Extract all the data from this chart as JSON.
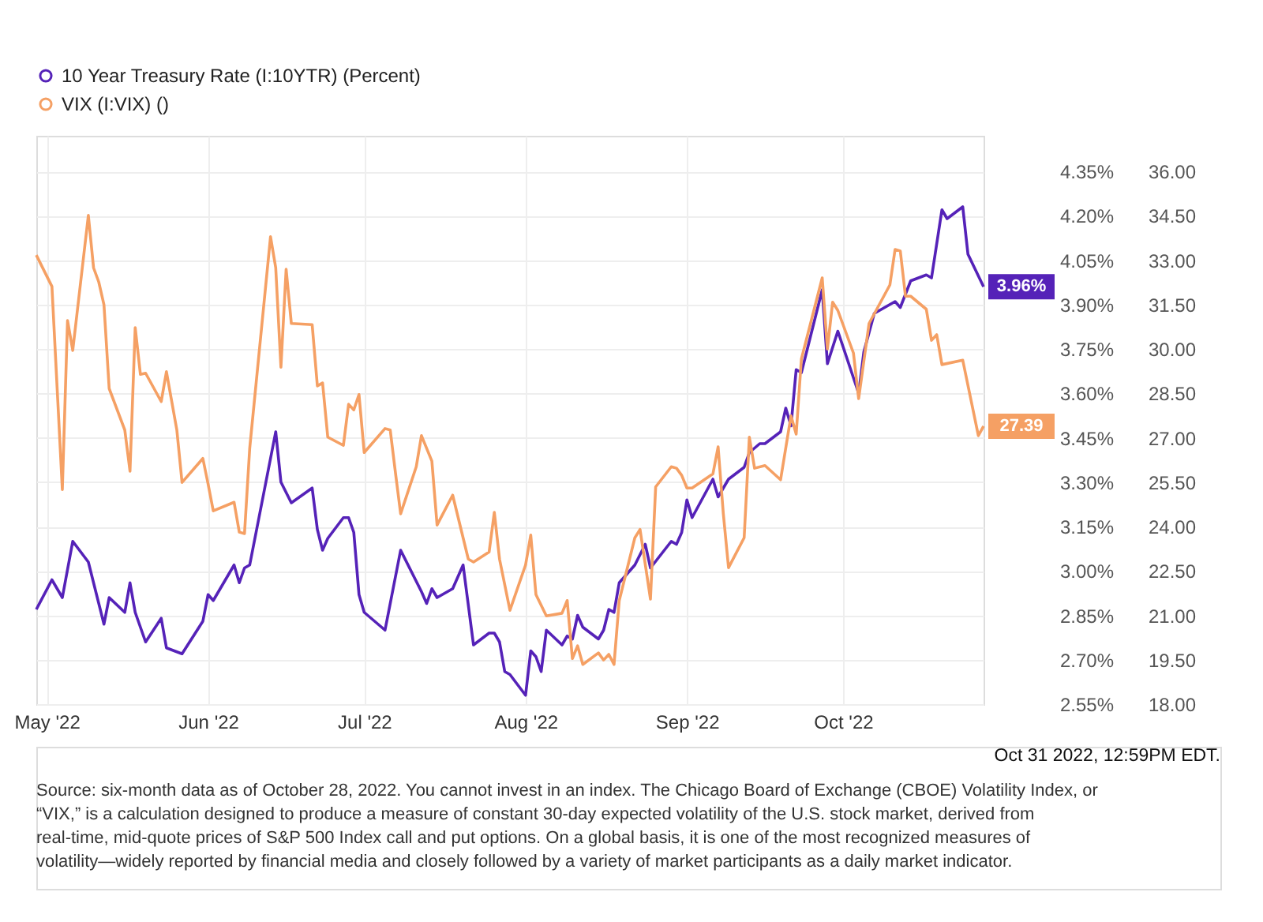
{
  "chart_data": {
    "type": "line",
    "xlim": [
      "2022-04-29",
      "2022-10-28"
    ],
    "xticks": [
      {
        "value": "2022-05-01",
        "label": "May '22"
      },
      {
        "value": "2022-06-01",
        "label": "Jun '22"
      },
      {
        "value": "2022-07-01",
        "label": "Jul '22"
      },
      {
        "value": "2022-08-01",
        "label": "Aug '22"
      },
      {
        "value": "2022-09-01",
        "label": "Sep '22"
      },
      {
        "value": "2022-10-01",
        "label": "Oct '22"
      }
    ],
    "ylim": [
      2.55,
      4.47
    ],
    "yticks": [
      {
        "value": 2.55,
        "label": "2.55%"
      },
      {
        "value": 2.7,
        "label": "2.70%"
      },
      {
        "value": 2.85,
        "label": "2.85%"
      },
      {
        "value": 3.0,
        "label": "3.00%"
      },
      {
        "value": 3.15,
        "label": "3.15%"
      },
      {
        "value": 3.3,
        "label": "3.30%"
      },
      {
        "value": 3.45,
        "label": "3.45%"
      },
      {
        "value": 3.6,
        "label": "3.60%"
      },
      {
        "value": 3.75,
        "label": "3.75%"
      },
      {
        "value": 3.9,
        "label": "3.90%"
      },
      {
        "value": 4.05,
        "label": "4.05%"
      },
      {
        "value": 4.2,
        "label": "4.20%"
      },
      {
        "value": 4.35,
        "label": "4.35%"
      }
    ],
    "y2lim": [
      18,
      37.2
    ],
    "y2ticks": [
      {
        "value": 18,
        "label": "18.00"
      },
      {
        "value": 19.5,
        "label": "19.50"
      },
      {
        "value": 21,
        "label": "21.00"
      },
      {
        "value": 22.5,
        "label": "22.50"
      },
      {
        "value": 24,
        "label": "24.00"
      },
      {
        "value": 25.5,
        "label": "25.50"
      },
      {
        "value": 27,
        "label": "27.00"
      },
      {
        "value": 28.5,
        "label": "28.50"
      },
      {
        "value": 30,
        "label": "30.00"
      },
      {
        "value": 31.5,
        "label": "31.50"
      },
      {
        "value": 33,
        "label": "33.00"
      },
      {
        "value": 34.5,
        "label": "34.50"
      },
      {
        "value": 36,
        "label": "36.00"
      }
    ],
    "grid": true,
    "legend": "top left",
    "series": [
      {
        "name": "10 Year Treasury Rate (I:10YTR) (Percent)",
        "color": "#5522b8",
        "x": [
          "2022-04-29",
          "2022-05-02",
          "2022-05-04",
          "2022-05-06",
          "2022-05-09",
          "2022-05-12",
          "2022-05-13",
          "2022-05-16",
          "2022-05-17",
          "2022-05-18",
          "2022-05-20",
          "2022-05-23",
          "2022-05-24",
          "2022-05-27",
          "2022-05-31",
          "2022-06-01",
          "2022-06-02",
          "2022-06-06",
          "2022-06-07",
          "2022-06-08",
          "2022-06-09",
          "2022-06-14",
          "2022-06-15",
          "2022-06-17",
          "2022-06-21",
          "2022-06-22",
          "2022-06-23",
          "2022-06-24",
          "2022-06-27",
          "2022-06-28",
          "2022-06-29",
          "2022-06-30",
          "2022-07-01",
          "2022-07-05",
          "2022-07-08",
          "2022-07-12",
          "2022-07-13",
          "2022-07-14",
          "2022-07-15",
          "2022-07-18",
          "2022-07-20",
          "2022-07-22",
          "2022-07-25",
          "2022-07-26",
          "2022-07-27",
          "2022-07-28",
          "2022-07-29",
          "2022-08-01",
          "2022-08-02",
          "2022-08-03",
          "2022-08-04",
          "2022-08-05",
          "2022-08-08",
          "2022-08-09",
          "2022-08-10",
          "2022-08-11",
          "2022-08-12",
          "2022-08-15",
          "2022-08-16",
          "2022-08-17",
          "2022-08-18",
          "2022-08-19",
          "2022-08-22",
          "2022-08-24",
          "2022-08-25",
          "2022-08-29",
          "2022-08-30",
          "2022-08-31",
          "2022-09-01",
          "2022-09-02",
          "2022-09-06",
          "2022-09-07",
          "2022-09-09",
          "2022-09-12",
          "2022-09-13",
          "2022-09-15",
          "2022-09-16",
          "2022-09-19",
          "2022-09-20",
          "2022-09-21",
          "2022-09-22",
          "2022-09-23",
          "2022-09-27",
          "2022-09-28",
          "2022-09-30",
          "2022-10-04",
          "2022-10-05",
          "2022-10-07",
          "2022-10-11",
          "2022-10-12",
          "2022-10-14",
          "2022-10-17",
          "2022-10-18",
          "2022-10-20",
          "2022-10-21",
          "2022-10-24",
          "2022-10-25",
          "2022-10-28"
        ],
        "values": [
          2.87,
          2.97,
          2.91,
          3.1,
          3.03,
          2.82,
          2.91,
          2.86,
          2.96,
          2.86,
          2.76,
          2.84,
          2.74,
          2.72,
          2.83,
          2.92,
          2.9,
          3.02,
          2.96,
          3.01,
          3.02,
          3.47,
          3.3,
          3.23,
          3.28,
          3.14,
          3.07,
          3.11,
          3.18,
          3.18,
          3.13,
          2.92,
          2.86,
          2.8,
          3.07,
          2.93,
          2.89,
          2.94,
          2.91,
          2.94,
          3.02,
          2.75,
          2.79,
          2.79,
          2.76,
          2.66,
          2.65,
          2.58,
          2.73,
          2.71,
          2.66,
          2.8,
          2.75,
          2.78,
          2.77,
          2.85,
          2.81,
          2.77,
          2.8,
          2.87,
          2.86,
          2.96,
          3.02,
          3.09,
          3.01,
          3.1,
          3.09,
          3.13,
          3.24,
          3.18,
          3.31,
          3.25,
          3.31,
          3.35,
          3.4,
          3.43,
          3.43,
          3.47,
          3.55,
          3.49,
          3.68,
          3.67,
          3.95,
          3.7,
          3.81,
          3.6,
          3.74,
          3.87,
          3.91,
          3.89,
          3.98,
          4.0,
          3.99,
          4.22,
          4.19,
          4.23,
          4.07,
          3.96
        ],
        "value_labels": [
          null,
          null,
          null,
          null,
          null,
          null,
          null,
          null,
          null,
          null,
          null,
          null,
          null,
          null,
          null,
          null,
          null,
          null,
          null,
          null,
          null,
          null,
          null,
          null,
          null,
          null,
          null,
          null,
          null,
          null,
          null,
          null,
          null,
          null,
          null,
          null,
          null,
          null,
          null,
          null,
          null,
          null,
          null,
          null,
          null,
          null,
          null,
          null,
          null,
          null,
          null,
          null,
          null,
          null,
          null,
          null,
          null,
          null,
          null,
          null,
          null,
          null,
          null,
          null,
          null,
          null,
          null,
          null,
          null,
          null,
          null,
          null,
          null,
          null,
          null,
          null,
          null,
          null,
          null,
          null,
          null,
          null,
          null,
          null,
          null,
          null,
          null,
          null,
          null,
          null,
          null,
          null,
          null,
          null,
          null,
          null,
          null,
          "3.96%"
        ]
      },
      {
        "name": "VIX (I:VIX) ()",
        "color": "#f5a064",
        "axis": "y2",
        "x": [
          "2022-04-29",
          "2022-05-02",
          "2022-05-04",
          "2022-05-05",
          "2022-05-06",
          "2022-05-09",
          "2022-05-10",
          "2022-05-11",
          "2022-05-12",
          "2022-05-13",
          "2022-05-16",
          "2022-05-17",
          "2022-05-18",
          "2022-05-19",
          "2022-05-20",
          "2022-05-23",
          "2022-05-24",
          "2022-05-26",
          "2022-05-27",
          "2022-05-31",
          "2022-06-01",
          "2022-06-02",
          "2022-06-06",
          "2022-06-07",
          "2022-06-08",
          "2022-06-09",
          "2022-06-13",
          "2022-06-14",
          "2022-06-15",
          "2022-06-16",
          "2022-06-17",
          "2022-06-21",
          "2022-06-22",
          "2022-06-23",
          "2022-06-24",
          "2022-06-27",
          "2022-06-28",
          "2022-06-29",
          "2022-06-30",
          "2022-07-01",
          "2022-07-05",
          "2022-07-06",
          "2022-07-07",
          "2022-07-08",
          "2022-07-11",
          "2022-07-12",
          "2022-07-14",
          "2022-07-15",
          "2022-07-18",
          "2022-07-21",
          "2022-07-22",
          "2022-07-25",
          "2022-07-26",
          "2022-07-27",
          "2022-07-29",
          "2022-08-01",
          "2022-08-02",
          "2022-08-03",
          "2022-08-05",
          "2022-08-08",
          "2022-08-09",
          "2022-08-10",
          "2022-08-11",
          "2022-08-12",
          "2022-08-15",
          "2022-08-16",
          "2022-08-17",
          "2022-08-18",
          "2022-08-19",
          "2022-08-22",
          "2022-08-23",
          "2022-08-25",
          "2022-08-26",
          "2022-08-29",
          "2022-08-30",
          "2022-08-31",
          "2022-09-01",
          "2022-09-02",
          "2022-09-06",
          "2022-09-07",
          "2022-09-08",
          "2022-09-09",
          "2022-09-12",
          "2022-09-13",
          "2022-09-14",
          "2022-09-16",
          "2022-09-19",
          "2022-09-21",
          "2022-09-22",
          "2022-09-23",
          "2022-09-27",
          "2022-09-28",
          "2022-09-29",
          "2022-09-30",
          "2022-10-03",
          "2022-10-04",
          "2022-10-06",
          "2022-10-10",
          "2022-10-11",
          "2022-10-12",
          "2022-10-13",
          "2022-10-14",
          "2022-10-17",
          "2022-10-18",
          "2022-10-19",
          "2022-10-20",
          "2022-10-24",
          "2022-10-27",
          "2022-10-28"
        ],
        "values": [
          33.17,
          32.11,
          25.25,
          30.96,
          29.95,
          34.51,
          32.74,
          32.26,
          31.49,
          28.66,
          27.26,
          25.87,
          30.72,
          29.14,
          29.18,
          28.22,
          29.23,
          27.26,
          25.49,
          26.3,
          25.44,
          24.53,
          24.82,
          23.81,
          23.76,
          26.64,
          33.79,
          32.74,
          29.38,
          32.69,
          30.86,
          30.82,
          28.75,
          28.85,
          27.02,
          26.74,
          28.13,
          27.94,
          28.46,
          26.5,
          27.31,
          27.26,
          25.82,
          24.43,
          26.02,
          27.07,
          26.21,
          24.05,
          25.06,
          22.9,
          22.8,
          23.14,
          24.48,
          22.9,
          21.17,
          22.7,
          23.71,
          21.7,
          20.98,
          21.07,
          21.5,
          19.54,
          19.97,
          19.34,
          19.73,
          19.49,
          19.68,
          19.34,
          21.5,
          23.62,
          23.9,
          21.55,
          25.34,
          26.02,
          25.97,
          25.73,
          25.3,
          25.3,
          25.78,
          26.69,
          24.43,
          22.61,
          23.62,
          27.02,
          25.97,
          26.06,
          25.58,
          27.74,
          27.12,
          29.66,
          32.4,
          30.0,
          31.58,
          31.3,
          29.86,
          28.32,
          30.86,
          32.16,
          33.36,
          33.31,
          31.78,
          31.78,
          31.34,
          30.29,
          30.48,
          29.47,
          29.62,
          27.07,
          27.39
        ],
        "value_labels": [
          null,
          null,
          null,
          null,
          null,
          null,
          null,
          null,
          null,
          null,
          null,
          null,
          null,
          null,
          null,
          null,
          null,
          null,
          null,
          null,
          null,
          null,
          null,
          null,
          null,
          null,
          null,
          null,
          null,
          null,
          null,
          null,
          null,
          null,
          null,
          null,
          null,
          null,
          null,
          null,
          null,
          null,
          null,
          null,
          null,
          null,
          null,
          null,
          null,
          null,
          null,
          null,
          null,
          null,
          null,
          null,
          null,
          null,
          null,
          null,
          null,
          null,
          null,
          null,
          null,
          null,
          null,
          null,
          null,
          null,
          null,
          null,
          null,
          null,
          null,
          null,
          null,
          null,
          null,
          null,
          null,
          null,
          null,
          null,
          null,
          null,
          null,
          null,
          null,
          null,
          null,
          null,
          null,
          null,
          null,
          null,
          null,
          null,
          null,
          null,
          null,
          null,
          null,
          null,
          null,
          null,
          null,
          null,
          "27.39"
        ]
      }
    ],
    "annotations": [
      "Oct 31 2022, 12:59PM EDT.",
      "Source: six-month data as of October 28, 2022. You cannot invest in an index. The Chicago Board of Exchange (CBOE) Volatility Index, or “VIX,” is a calculation designed to produce a measure of constant 30-day expected volatility of the U.S. stock market, derived from real-time, mid-quote prices of S&P 500 Index call and put options. On a global basis, it is one of the most recognized measures of volatility—widely reported by financial media and closely followed by a variety of market participants as a daily market indicator."
    ]
  }
}
